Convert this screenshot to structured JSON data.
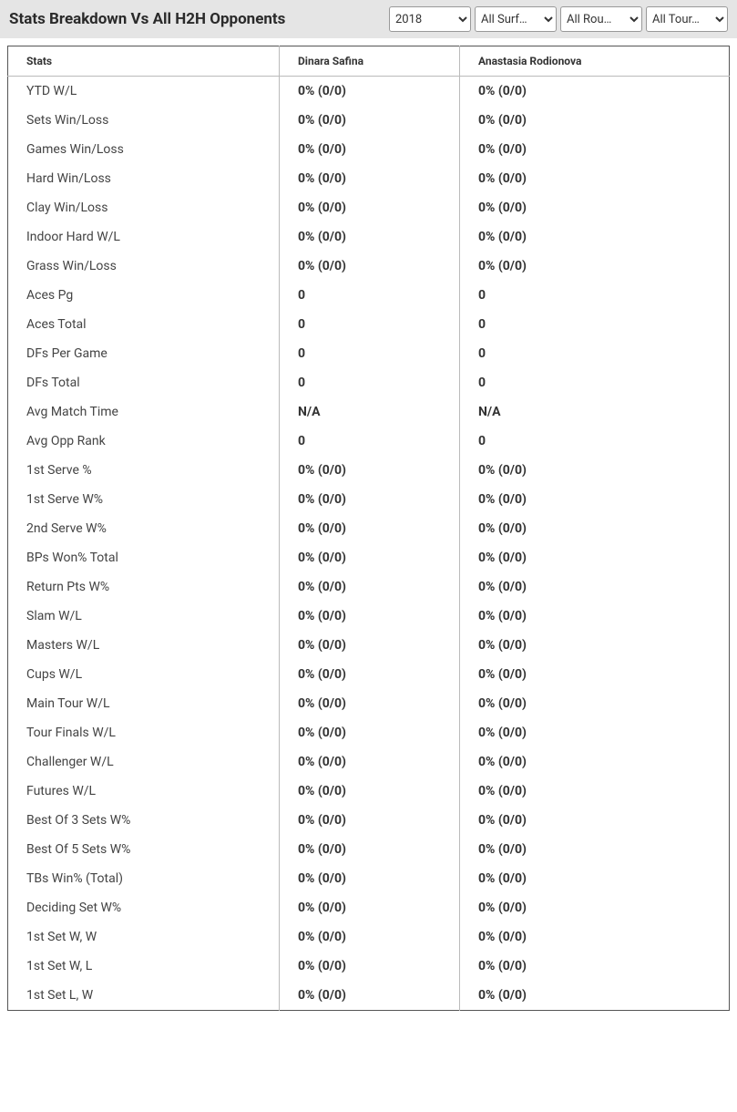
{
  "header": {
    "title": "Stats Breakdown Vs All H2H Opponents",
    "filters": {
      "year": "2018",
      "surface": "All Surf…",
      "round": "All Rou…",
      "tournament": "All Tour…"
    }
  },
  "table": {
    "columns": [
      "Stats",
      "Dinara Safina",
      "Anastasia Rodionova"
    ],
    "rows": [
      [
        "YTD W/L",
        "0% (0/0)",
        "0% (0/0)"
      ],
      [
        "Sets Win/Loss",
        "0% (0/0)",
        "0% (0/0)"
      ],
      [
        "Games Win/Loss",
        "0% (0/0)",
        "0% (0/0)"
      ],
      [
        "Hard Win/Loss",
        "0% (0/0)",
        "0% (0/0)"
      ],
      [
        "Clay Win/Loss",
        "0% (0/0)",
        "0% (0/0)"
      ],
      [
        "Indoor Hard W/L",
        "0% (0/0)",
        "0% (0/0)"
      ],
      [
        "Grass Win/Loss",
        "0% (0/0)",
        "0% (0/0)"
      ],
      [
        "Aces Pg",
        "0",
        "0"
      ],
      [
        "Aces Total",
        "0",
        "0"
      ],
      [
        "DFs Per Game",
        "0",
        "0"
      ],
      [
        "DFs Total",
        "0",
        "0"
      ],
      [
        "Avg Match Time",
        "N/A",
        "N/A"
      ],
      [
        "Avg Opp Rank",
        "0",
        "0"
      ],
      [
        "1st Serve %",
        "0% (0/0)",
        "0% (0/0)"
      ],
      [
        "1st Serve W%",
        "0% (0/0)",
        "0% (0/0)"
      ],
      [
        "2nd Serve W%",
        "0% (0/0)",
        "0% (0/0)"
      ],
      [
        "BPs Won% Total",
        "0% (0/0)",
        "0% (0/0)"
      ],
      [
        "Return Pts W%",
        "0% (0/0)",
        "0% (0/0)"
      ],
      [
        "Slam W/L",
        "0% (0/0)",
        "0% (0/0)"
      ],
      [
        "Masters W/L",
        "0% (0/0)",
        "0% (0/0)"
      ],
      [
        "Cups W/L",
        "0% (0/0)",
        "0% (0/0)"
      ],
      [
        "Main Tour W/L",
        "0% (0/0)",
        "0% (0/0)"
      ],
      [
        "Tour Finals W/L",
        "0% (0/0)",
        "0% (0/0)"
      ],
      [
        "Challenger W/L",
        "0% (0/0)",
        "0% (0/0)"
      ],
      [
        "Futures W/L",
        "0% (0/0)",
        "0% (0/0)"
      ],
      [
        "Best Of 3 Sets W%",
        "0% (0/0)",
        "0% (0/0)"
      ],
      [
        "Best Of 5 Sets W%",
        "0% (0/0)",
        "0% (0/0)"
      ],
      [
        "TBs Win% (Total)",
        "0% (0/0)",
        "0% (0/0)"
      ],
      [
        "Deciding Set W%",
        "0% (0/0)",
        "0% (0/0)"
      ],
      [
        "1st Set W, W",
        "0% (0/0)",
        "0% (0/0)"
      ],
      [
        "1st Set W, L",
        "0% (0/0)",
        "0% (0/0)"
      ],
      [
        "1st Set L, W",
        "0% (0/0)",
        "0% (0/0)"
      ]
    ]
  }
}
